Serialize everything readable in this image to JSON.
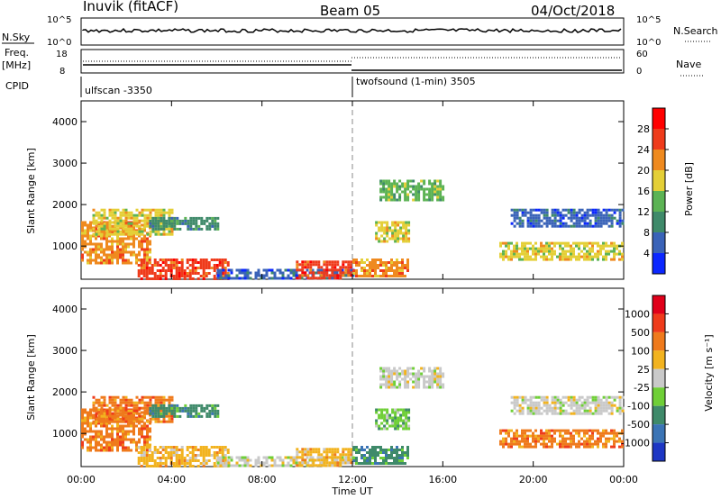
{
  "header": {
    "station": "Inuvik (fitACF)",
    "beam": "Beam 05",
    "date": "04/Oct/2018"
  },
  "top_panel": {
    "left_label": "N.Sky",
    "left_ticks": [
      "10^5",
      "10^0"
    ],
    "right_ticks": [
      "10^5",
      "10^0"
    ],
    "right_label": "N.Search"
  },
  "freq_panel": {
    "left_label_1": "Freq.",
    "left_label_2": "[MHz]",
    "left_ticks": [
      "18",
      "8"
    ],
    "right_ticks": [
      "60",
      "0"
    ],
    "right_label": "Nave"
  },
  "cpid_panel": {
    "label": "CPID",
    "segments": [
      {
        "text": "ulfscan -3350",
        "start_hour": 0
      },
      {
        "text": "twofsound (1-min) 3505",
        "start_hour": 12
      }
    ]
  },
  "chart_data": [
    {
      "type": "heatmap",
      "panel": "power",
      "ylabel": "Slant Range [km]",
      "yticks": [
        1000,
        2000,
        3000,
        4000
      ],
      "ylim": [
        200,
        4500
      ],
      "xlim": [
        0,
        24
      ],
      "colorbar": {
        "label": "Power [dB]",
        "ticks": [
          "4",
          "8",
          "12",
          "16",
          "20",
          "24",
          "28"
        ],
        "colors": [
          "#0b27ff",
          "#3a63b8",
          "#3f8a6a",
          "#5cb354",
          "#e4cf37",
          "#ef8a1f",
          "#ef3b1b",
          "#ff0000"
        ]
      },
      "echo_regions": [
        {
          "t0": 0.0,
          "t1": 3.0,
          "r0": 600,
          "r1": 1600,
          "level": 5
        },
        {
          "t0": 0.5,
          "t1": 4.0,
          "r0": 1300,
          "r1": 1900,
          "level": 4
        },
        {
          "t0": 3.0,
          "t1": 6.0,
          "r0": 1400,
          "r1": 1700,
          "level": 2
        },
        {
          "t0": 2.5,
          "t1": 6.5,
          "r0": 200,
          "r1": 700,
          "level": 6
        },
        {
          "t0": 6.0,
          "t1": 12.0,
          "r0": 200,
          "r1": 450,
          "level": 1
        },
        {
          "t0": 9.5,
          "t1": 12.0,
          "r0": 250,
          "r1": 650,
          "level": 6
        },
        {
          "t0": 12.0,
          "t1": 14.5,
          "r0": 250,
          "r1": 700,
          "level": 5
        },
        {
          "t0": 13.0,
          "t1": 14.5,
          "r0": 1100,
          "r1": 1600,
          "level": 4
        },
        {
          "t0": 13.2,
          "t1": 16.0,
          "r0": 2100,
          "r1": 2600,
          "level": 3
        },
        {
          "t0": 18.5,
          "t1": 24.0,
          "r0": 700,
          "r1": 1100,
          "level": 4
        },
        {
          "t0": 19.0,
          "t1": 24.0,
          "r0": 1500,
          "r1": 1900,
          "level": 1
        }
      ]
    },
    {
      "type": "heatmap",
      "panel": "velocity",
      "ylabel": "Slant Range [km]",
      "yticks": [
        1000,
        2000,
        3000,
        4000
      ],
      "ylim": [
        200,
        4500
      ],
      "xlim": [
        0,
        24
      ],
      "colorbar": {
        "label": "Velocity [m s⁻¹]",
        "ticks": [
          "1000",
          "500",
          "100",
          "25",
          "-25",
          "-100",
          "-500",
          "-1000"
        ],
        "colors": [
          "#1d37c4",
          "#3b74b5",
          "#3f8a6a",
          "#6fcf37",
          "#c9c9c9",
          "#f2b31f",
          "#ef7a1c",
          "#ef3b1b",
          "#e0001a"
        ]
      },
      "echo_regions": [
        {
          "t0": 0.0,
          "t1": 3.0,
          "r0": 600,
          "r1": 1600,
          "level": 6
        },
        {
          "t0": 0.5,
          "t1": 4.0,
          "r0": 1300,
          "r1": 1900,
          "level": 6
        },
        {
          "t0": 3.0,
          "t1": 6.0,
          "r0": 1400,
          "r1": 1700,
          "level": 2
        },
        {
          "t0": 2.5,
          "t1": 6.5,
          "r0": 200,
          "r1": 700,
          "level": 5
        },
        {
          "t0": 6.0,
          "t1": 12.0,
          "r0": 200,
          "r1": 450,
          "level": 4
        },
        {
          "t0": 9.5,
          "t1": 12.0,
          "r0": 250,
          "r1": 650,
          "level": 5
        },
        {
          "t0": 12.0,
          "t1": 14.5,
          "r0": 250,
          "r1": 700,
          "level": 2
        },
        {
          "t0": 13.0,
          "t1": 14.5,
          "r0": 1100,
          "r1": 1600,
          "level": 3
        },
        {
          "t0": 13.2,
          "t1": 16.0,
          "r0": 2100,
          "r1": 2600,
          "level": 4
        },
        {
          "t0": 18.5,
          "t1": 24.0,
          "r0": 700,
          "r1": 1100,
          "level": 6
        },
        {
          "t0": 19.0,
          "t1": 24.0,
          "r0": 1500,
          "r1": 1900,
          "level": 4
        }
      ]
    }
  ],
  "x_axis": {
    "ticks": [
      "00:00",
      "04:00",
      "08:00",
      "12:00",
      "16:00",
      "20:00",
      "00:00"
    ],
    "tick_hours": [
      0,
      4,
      8,
      12,
      16,
      20,
      24
    ],
    "label": "Time UT"
  }
}
